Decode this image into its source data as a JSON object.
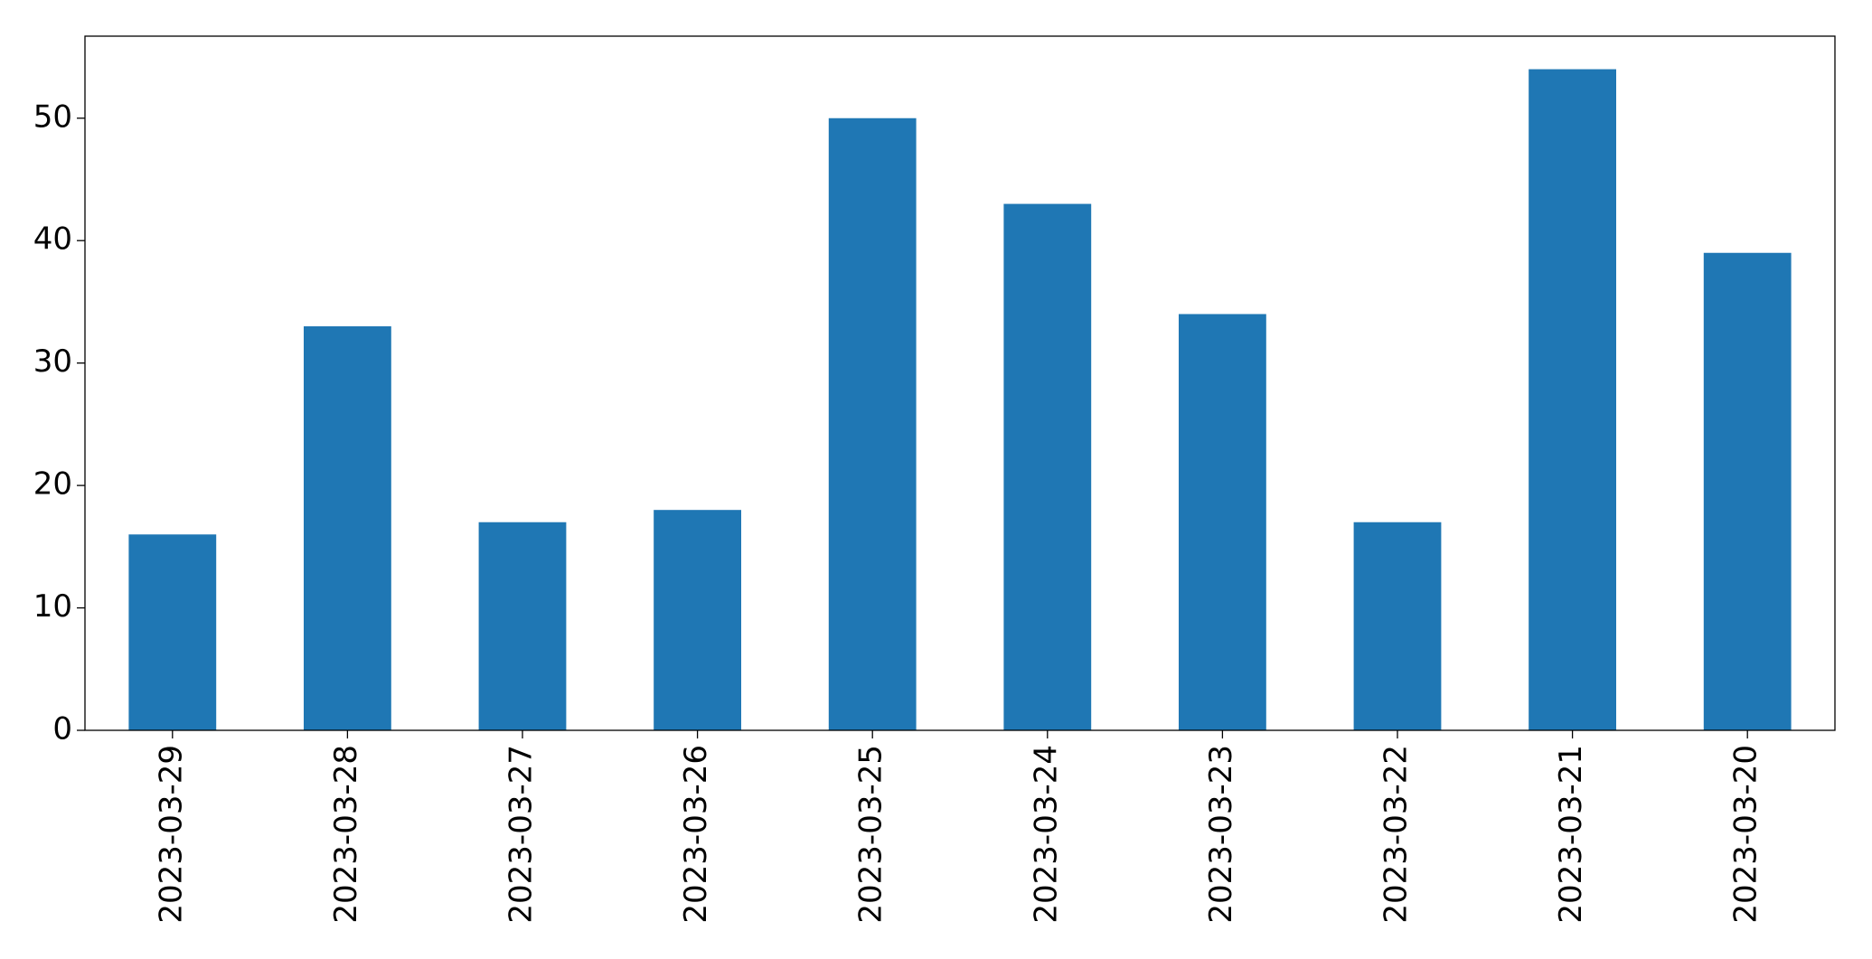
{
  "chart_data": {
    "type": "bar",
    "categories": [
      "2023-03-29",
      "2023-03-28",
      "2023-03-27",
      "2023-03-26",
      "2023-03-25",
      "2023-03-24",
      "2023-03-23",
      "2023-03-22",
      "2023-03-21",
      "2023-03-20"
    ],
    "values": [
      16,
      33,
      17,
      18,
      50,
      43,
      34,
      17,
      54,
      39
    ],
    "color": "#1f77b4",
    "ylim": [
      0,
      56.7
    ],
    "yticks": [
      0,
      10,
      20,
      30,
      40,
      50
    ],
    "grid": false
  }
}
